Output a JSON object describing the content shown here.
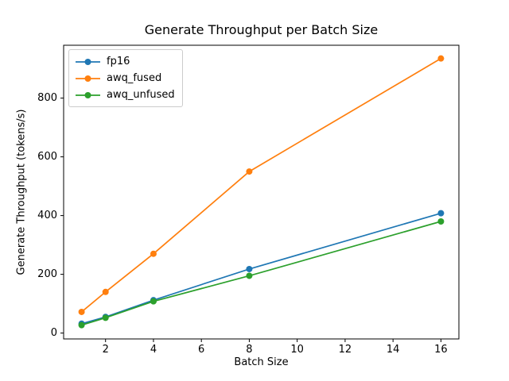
{
  "figure": {
    "title": "Generate Throughput per Batch Size",
    "xlabel": "Batch Size",
    "ylabel": "Generate Throughput (tokens/s)"
  },
  "chart_data": {
    "type": "line",
    "title": "Generate Throughput per Batch Size",
    "xlabel": "Batch Size",
    "ylabel": "Generate Throughput (tokens/s)",
    "x": [
      1,
      2,
      4,
      8,
      16
    ],
    "series": [
      {
        "name": "fp16",
        "color": "#1f77b4",
        "values": [
          32,
          55,
          112,
          218,
          408
        ]
      },
      {
        "name": "awq_fused",
        "color": "#ff7f0e",
        "values": [
          72,
          140,
          270,
          550,
          935
        ]
      },
      {
        "name": "awq_unfused",
        "color": "#2ca02c",
        "values": [
          27,
          52,
          108,
          195,
          380
        ]
      }
    ],
    "xticks": [
      2,
      4,
      6,
      8,
      10,
      12,
      14,
      16
    ],
    "yticks": [
      0,
      200,
      400,
      600,
      800
    ],
    "xlim": [
      0.25,
      16.75
    ],
    "ylim": [
      -20,
      980
    ],
    "marker": "o",
    "grid": false,
    "legend_position": "upper left"
  }
}
